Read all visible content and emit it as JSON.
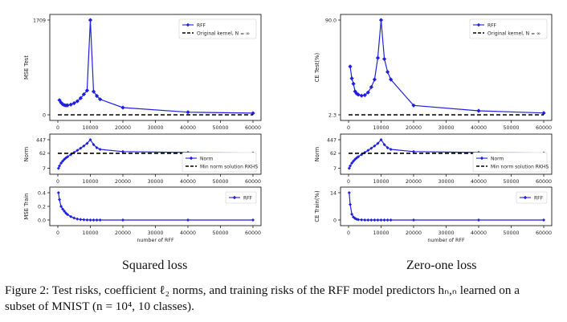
{
  "chart_data": [
    {
      "type": "line",
      "panel": "left-top",
      "ylabel": "MSE Test",
      "yticks": [
        "0",
        "1709"
      ],
      "ylim": [
        0,
        1709
      ],
      "xticks": [
        "0",
        "10000",
        "20000",
        "30000",
        "40000",
        "50000",
        "60000"
      ],
      "xlim": [
        0,
        60000
      ],
      "legend": [
        "RFF",
        "Original kernel, N = ∞"
      ],
      "legend_position": "top-right",
      "series": [
        {
          "name": "RFF",
          "color": "#1f1fe0",
          "x": [
            500,
            1000,
            1500,
            2000,
            2500,
            3000,
            4000,
            5000,
            6000,
            7000,
            8000,
            9000,
            10000,
            11000,
            12000,
            13000,
            20000,
            40000,
            60000
          ],
          "y": [
            265,
            220,
            190,
            175,
            170,
            172,
            185,
            210,
            245,
            300,
            370,
            440,
            1709,
            420,
            340,
            280,
            130,
            48,
            30
          ]
        },
        {
          "name": "Original kernel, N = ∞",
          "color": "#000000",
          "style": "dashed",
          "x": [
            0,
            60000
          ],
          "y": [
            0,
            0
          ]
        }
      ]
    },
    {
      "type": "line",
      "panel": "left-middle",
      "ylabel": "Norm",
      "yscale": "log",
      "yticks": [
        "7",
        "62",
        "447"
      ],
      "xticks": [
        "0",
        "10000",
        "20000",
        "30000",
        "40000",
        "50000",
        "60000"
      ],
      "xlim": [
        0,
        60000
      ],
      "legend": [
        "Norm",
        "Min norm solution RKHS"
      ],
      "legend_position": "lower-right",
      "series": [
        {
          "name": "Norm",
          "color": "#1f1fe0",
          "x": [
            200,
            500,
            1000,
            1500,
            2000,
            2500,
            3000,
            4000,
            5000,
            6000,
            7000,
            8000,
            9000,
            10000,
            11000,
            12000,
            13000,
            20000,
            40000,
            60000
          ],
          "y": [
            7,
            10,
            15,
            20,
            26,
            32,
            38,
            52,
            70,
            95,
            130,
            180,
            260,
            447,
            220,
            140,
            110,
            80,
            70,
            64
          ]
        },
        {
          "name": "Min norm solution RKHS",
          "color": "#000000",
          "style": "dashed",
          "x": [
            0,
            60000
          ],
          "y": [
            62,
            62
          ]
        }
      ]
    },
    {
      "type": "line",
      "panel": "left-bottom",
      "ylabel": "MSE Train",
      "xlabel": "number of RFF",
      "yticks": [
        "0.0",
        "0.2",
        "0.4"
      ],
      "ylim": [
        0,
        0.4
      ],
      "xticks": [
        "0",
        "10000",
        "20000",
        "30000",
        "40000",
        "50000",
        "60000"
      ],
      "xlim": [
        0,
        60000
      ],
      "legend": [
        "RFF"
      ],
      "legend_position": "top-right",
      "series": [
        {
          "name": "RFF",
          "color": "#1f1fe0",
          "x": [
            200,
            500,
            1000,
            1500,
            2000,
            2500,
            3000,
            4000,
            5000,
            6000,
            7000,
            8000,
            9000,
            10000,
            11000,
            12000,
            13000,
            20000,
            40000,
            60000
          ],
          "y": [
            0.4,
            0.3,
            0.2,
            0.16,
            0.13,
            0.1,
            0.08,
            0.05,
            0.03,
            0.015,
            0.008,
            0.004,
            0.002,
            0,
            0,
            0,
            0,
            0,
            0,
            0
          ]
        }
      ]
    },
    {
      "type": "line",
      "panel": "right-top",
      "ylabel": "CE Test(%)",
      "yticks": [
        "2.3",
        "90.0"
      ],
      "ylim": [
        2.3,
        90.0
      ],
      "xticks": [
        "0",
        "10000",
        "20000",
        "30000",
        "40000",
        "50000",
        "60000"
      ],
      "xlim": [
        0,
        60000
      ],
      "legend": [
        "RFF",
        "Original kernel, N = ∞"
      ],
      "legend_position": "top-right",
      "series": [
        {
          "name": "RFF",
          "color": "#1f1fe0",
          "x": [
            500,
            1000,
            1500,
            2000,
            2500,
            3000,
            4000,
            5000,
            6000,
            7000,
            8000,
            9000,
            10000,
            11000,
            12000,
            13000,
            20000,
            40000,
            60000
          ],
          "y": [
            47,
            36,
            31,
            24,
            22,
            21,
            20,
            20.5,
            23,
            28,
            35,
            55,
            90,
            54,
            42,
            35,
            11,
            6,
            4
          ]
        },
        {
          "name": "Original kernel, N = ∞",
          "color": "#000000",
          "style": "dashed",
          "x": [
            0,
            60000
          ],
          "y": [
            2.3,
            2.3
          ]
        }
      ]
    },
    {
      "type": "line",
      "panel": "right-middle",
      "ylabel": "Norm",
      "yscale": "log",
      "yticks": [
        "7",
        "62",
        "447"
      ],
      "xticks": [
        "0",
        "10000",
        "20000",
        "30000",
        "40000",
        "50000",
        "60000"
      ],
      "xlim": [
        0,
        60000
      ],
      "legend": [
        "Norm",
        "Min norm solution RKHS"
      ],
      "legend_position": "lower-right",
      "series": [
        {
          "name": "Norm",
          "color": "#1f1fe0",
          "x": [
            200,
            500,
            1000,
            1500,
            2000,
            2500,
            3000,
            4000,
            5000,
            6000,
            7000,
            8000,
            9000,
            10000,
            11000,
            12000,
            13000,
            20000,
            40000,
            60000
          ],
          "y": [
            7,
            10,
            15,
            20,
            26,
            32,
            38,
            52,
            70,
            95,
            130,
            180,
            260,
            447,
            220,
            140,
            110,
            80,
            70,
            64
          ]
        },
        {
          "name": "Min norm solution RKHS",
          "color": "#000000",
          "style": "dashed",
          "x": [
            0,
            60000
          ],
          "y": [
            62,
            62
          ]
        }
      ]
    },
    {
      "type": "line",
      "panel": "right-bottom",
      "ylabel": "CE Train(%)",
      "xlabel": "number of RFF",
      "yticks": [
        "0",
        "14"
      ],
      "ylim": [
        0,
        14
      ],
      "xticks": [
        "0",
        "10000",
        "20000",
        "30000",
        "40000",
        "50000",
        "60000"
      ],
      "xlim": [
        0,
        60000
      ],
      "legend": [
        "RFF"
      ],
      "legend_position": "top-right",
      "series": [
        {
          "name": "RFF",
          "color": "#1f1fe0",
          "x": [
            200,
            500,
            1000,
            1500,
            2000,
            2500,
            3000,
            4000,
            5000,
            6000,
            7000,
            8000,
            9000,
            10000,
            11000,
            12000,
            13000,
            20000,
            40000,
            60000
          ],
          "y": [
            14,
            8,
            3,
            1.5,
            0.8,
            0.4,
            0.2,
            0.1,
            0,
            0,
            0,
            0,
            0,
            0,
            0,
            0,
            0,
            0,
            0,
            0
          ]
        }
      ]
    }
  ],
  "subplot_titles": [
    "Squared loss",
    "Zero-one loss"
  ],
  "caption": {
    "line1": "Figure 2: Test risks, coefficient ℓ₂ norms, and training risks of the RFF model predictors hₙ,ₙ learned on a",
    "line2": "subset of MNIST (n = 10⁴, 10 classes)."
  }
}
